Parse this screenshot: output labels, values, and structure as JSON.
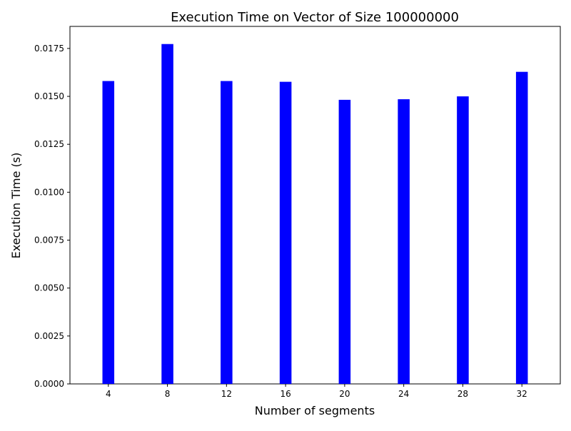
{
  "chart_data": {
    "type": "bar",
    "title": "Execution Time on Vector of Size 100000000",
    "xlabel": "Number of segments",
    "ylabel": "Execution Time (s)",
    "categories": [
      4,
      8,
      12,
      16,
      20,
      24,
      28,
      32
    ],
    "values": [
      0.0158,
      0.01773,
      0.0158,
      0.01576,
      0.01482,
      0.01485,
      0.015,
      0.01628
    ],
    "xlim": [
      1.4,
      34.6
    ],
    "ylim": [
      0,
      0.01865
    ],
    "yticks": [
      0.0,
      0.0025,
      0.005,
      0.0075,
      0.01,
      0.0125,
      0.015,
      0.0175
    ],
    "ytick_labels": [
      "0.0000",
      "0.0025",
      "0.0050",
      "0.0075",
      "0.0100",
      "0.0125",
      "0.0150",
      "0.0175"
    ],
    "xticks": [
      4,
      8,
      12,
      16,
      20,
      24,
      28,
      32
    ],
    "xtick_labels": [
      "4",
      "8",
      "12",
      "16",
      "20",
      "24",
      "28",
      "32"
    ],
    "bar_width": 0.8,
    "bar_color": "#0000ff",
    "grid": false,
    "legend": null
  }
}
